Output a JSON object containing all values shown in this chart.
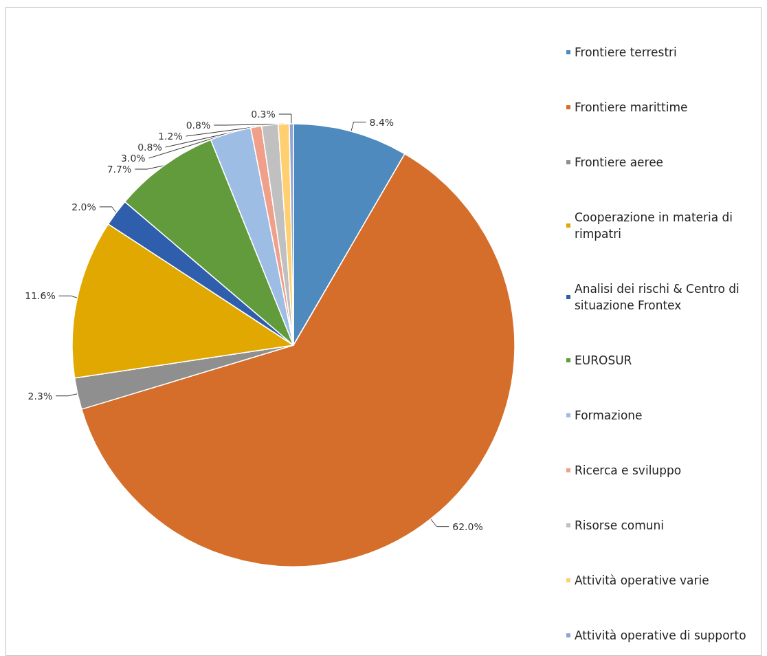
{
  "chart_data": {
    "type": "pie",
    "categories": [
      "Frontiere terrestri",
      "Frontiere marittime",
      "Frontiere aeree",
      "Cooperazione in materia di rimpatri",
      "Analisi dei rischi & Centro di situazione Frontex",
      "EUROSUR",
      "Formazione",
      "Ricerca e sviluppo",
      "Risorse comuni",
      "Attività operative varie",
      "Attività operative di supporto"
    ],
    "values": [
      8.4,
      62.0,
      2.3,
      11.6,
      2.0,
      7.7,
      3.0,
      0.8,
      1.2,
      0.8,
      0.3
    ],
    "value_labels": [
      "8.4%",
      "62.0%",
      "2.3%",
      "11.6%",
      "2.0%",
      "7.7%",
      "3.0%",
      "0.8%",
      "1.2%",
      "0.8%",
      "0.3%"
    ],
    "colors": [
      "#4e8abe",
      "#d46e2a",
      "#8f8f8f",
      "#e0a800",
      "#2f5fac",
      "#629b3c",
      "#9dbde4",
      "#f0a08a",
      "#c0c0c0",
      "#ffcf70",
      "#8ea5d8"
    ],
    "legend": "right"
  }
}
